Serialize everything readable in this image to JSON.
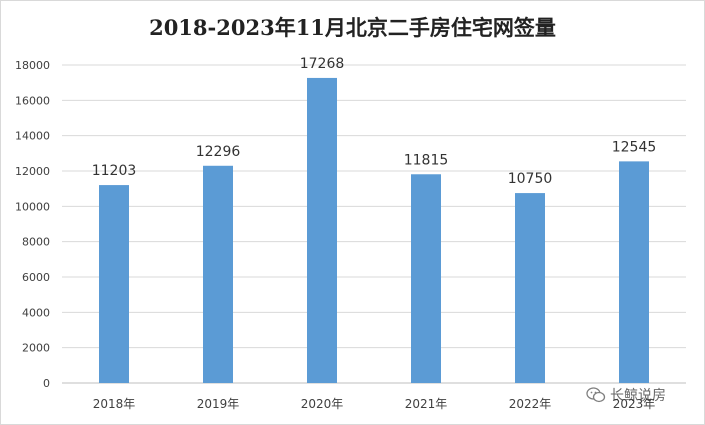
{
  "chart_data": {
    "type": "bar",
    "title": "2018-2023年11月北京二手房住宅网签量",
    "categories": [
      "2018年",
      "2019年",
      "2020年",
      "2021年",
      "2022年",
      "2023年"
    ],
    "values": [
      11203,
      12296,
      17268,
      11815,
      10750,
      12545
    ],
    "ylim": [
      0,
      18000
    ],
    "yticks": [
      0,
      2000,
      4000,
      6000,
      8000,
      10000,
      12000,
      14000,
      16000,
      18000
    ],
    "xlabel": "",
    "ylabel": "",
    "grid": true,
    "bar_color": "#5b9bd5",
    "data_labels": true
  },
  "watermark": {
    "text": "长鲸说房",
    "icon": "wechat-icon"
  }
}
